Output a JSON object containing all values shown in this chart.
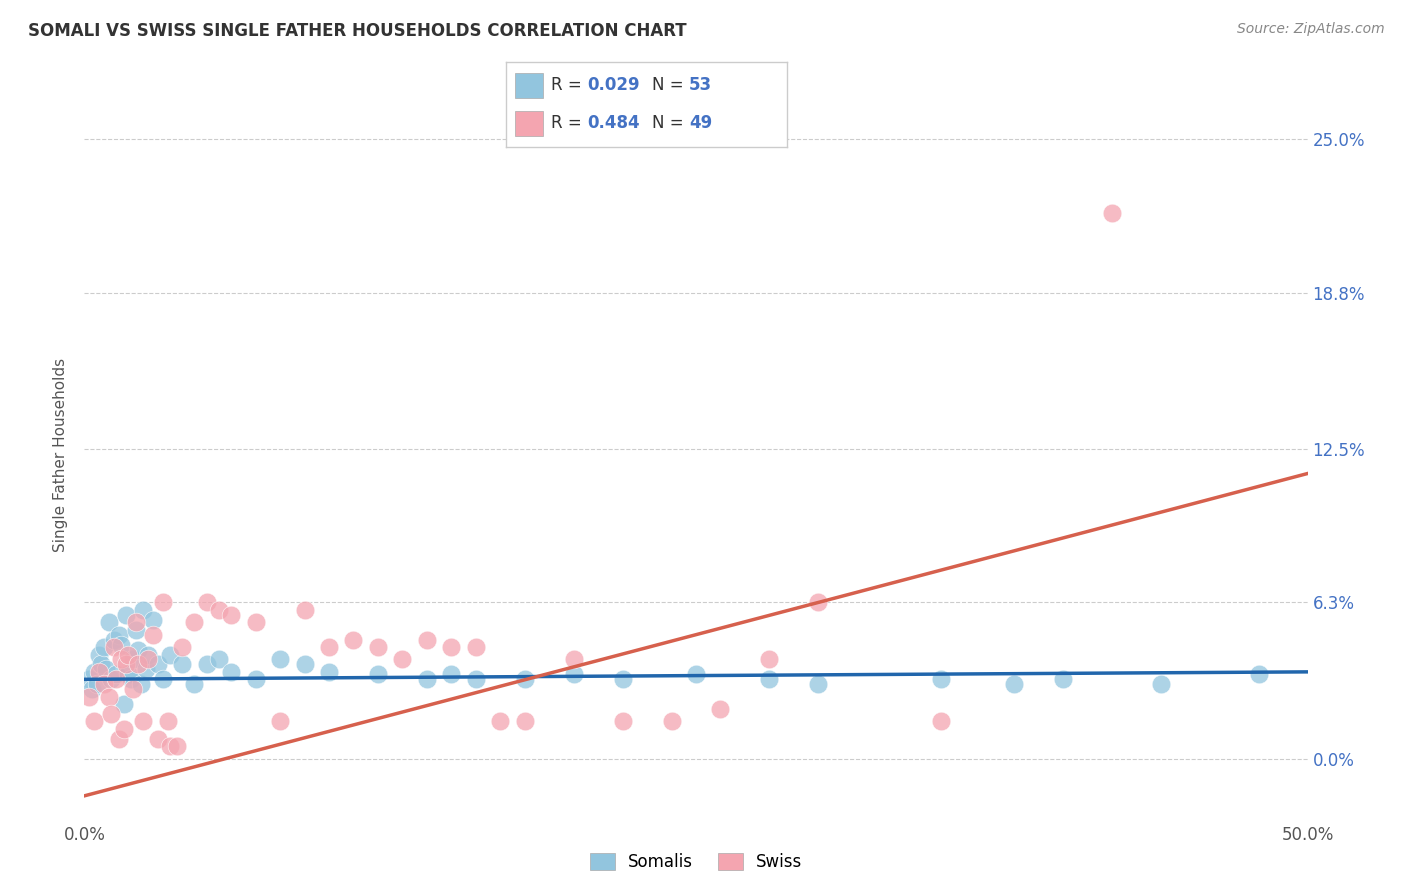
{
  "title": "SOMALI VS SWISS SINGLE FATHER HOUSEHOLDS CORRELATION CHART",
  "source": "Source: ZipAtlas.com",
  "ylabel": "Single Father Households",
  "ytick_values": [
    0.0,
    6.3,
    12.5,
    18.8,
    25.0
  ],
  "xlim": [
    0.0,
    50.0
  ],
  "ylim": [
    -2.5,
    27.0
  ],
  "somali_R": 0.029,
  "somali_N": 53,
  "swiss_R": 0.484,
  "swiss_N": 49,
  "somali_color": "#92c5de",
  "swiss_color": "#f4a5b0",
  "somali_line_color": "#2166ac",
  "swiss_line_color": "#d6604d",
  "background_color": "#ffffff",
  "legend_text_color": "#4472c4",
  "somali_x": [
    0.2,
    0.3,
    0.4,
    0.5,
    0.6,
    0.7,
    0.8,
    0.9,
    1.0,
    1.1,
    1.2,
    1.3,
    1.4,
    1.5,
    1.6,
    1.7,
    1.8,
    1.9,
    2.0,
    2.1,
    2.2,
    2.3,
    2.4,
    2.5,
    2.6,
    2.8,
    3.0,
    3.2,
    3.5,
    4.0,
    4.5,
    5.0,
    5.5,
    6.0,
    7.0,
    8.0,
    9.0,
    10.0,
    12.0,
    14.0,
    15.0,
    16.0,
    18.0,
    20.0,
    22.0,
    25.0,
    28.0,
    30.0,
    35.0,
    38.0,
    40.0,
    44.0,
    48.0
  ],
  "somali_y": [
    3.2,
    2.8,
    3.5,
    3.0,
    4.2,
    3.8,
    4.5,
    3.6,
    5.5,
    3.2,
    4.8,
    3.4,
    5.0,
    4.6,
    2.2,
    5.8,
    3.4,
    3.2,
    4.0,
    5.2,
    4.4,
    3.0,
    6.0,
    3.6,
    4.2,
    5.6,
    3.8,
    3.2,
    4.2,
    3.8,
    3.0,
    3.8,
    4.0,
    3.5,
    3.2,
    4.0,
    3.8,
    3.5,
    3.4,
    3.2,
    3.4,
    3.2,
    3.2,
    3.4,
    3.2,
    3.4,
    3.2,
    3.0,
    3.2,
    3.0,
    3.2,
    3.0,
    3.4
  ],
  "swiss_x": [
    0.2,
    0.4,
    0.6,
    0.8,
    1.0,
    1.1,
    1.2,
    1.3,
    1.4,
    1.5,
    1.6,
    1.7,
    1.8,
    2.0,
    2.1,
    2.2,
    2.4,
    2.6,
    2.8,
    3.0,
    3.2,
    3.4,
    3.5,
    3.8,
    4.0,
    4.5,
    5.0,
    5.5,
    6.0,
    7.0,
    8.0,
    9.0,
    10.0,
    11.0,
    12.0,
    13.0,
    14.0,
    15.0,
    16.0,
    17.0,
    18.0,
    20.0,
    22.0,
    24.0,
    26.0,
    30.0,
    35.0,
    42.0,
    28.0
  ],
  "swiss_y": [
    2.5,
    1.5,
    3.5,
    3.0,
    2.5,
    1.8,
    4.5,
    3.2,
    0.8,
    4.0,
    1.2,
    3.8,
    4.2,
    2.8,
    5.5,
    3.8,
    1.5,
    4.0,
    5.0,
    0.8,
    6.3,
    1.5,
    0.5,
    0.5,
    4.5,
    5.5,
    6.3,
    6.0,
    5.8,
    5.5,
    1.5,
    6.0,
    4.5,
    4.8,
    4.5,
    4.0,
    4.8,
    4.5,
    4.5,
    1.5,
    1.5,
    4.0,
    1.5,
    1.5,
    2.0,
    6.3,
    1.5,
    22.0,
    4.0
  ],
  "somali_line_x0": 0.0,
  "somali_line_y0": 3.2,
  "somali_line_x1": 50.0,
  "somali_line_y1": 3.5,
  "swiss_line_x0": 0.0,
  "swiss_line_y0": -1.5,
  "swiss_line_x1": 50.0,
  "swiss_line_y1": 11.5
}
